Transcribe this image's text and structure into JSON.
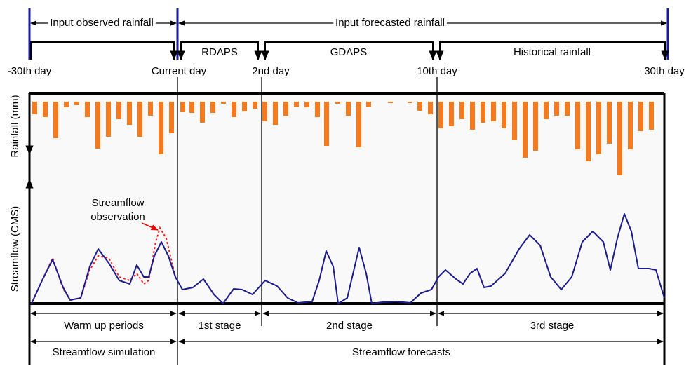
{
  "header": {
    "observed": "Input observed rainfall",
    "forecasted": "Input forecasted rainfall"
  },
  "sources": [
    "RDAPS",
    "GDAPS",
    "Historical rainfall"
  ],
  "days": [
    "-30th day",
    "Current day",
    "2nd day",
    "10th day",
    "30th day"
  ],
  "axes": {
    "rainfall": "Rainfall (mm)",
    "streamflow": "Streamflow (CMS)"
  },
  "annotation": [
    "Streamflow",
    "observation"
  ],
  "stages": [
    "Warm up periods",
    "1st stage",
    "2nd stage",
    "3rd stage"
  ],
  "periods": [
    "Streamflow simulation",
    "Streamflow forecasts"
  ]
}
